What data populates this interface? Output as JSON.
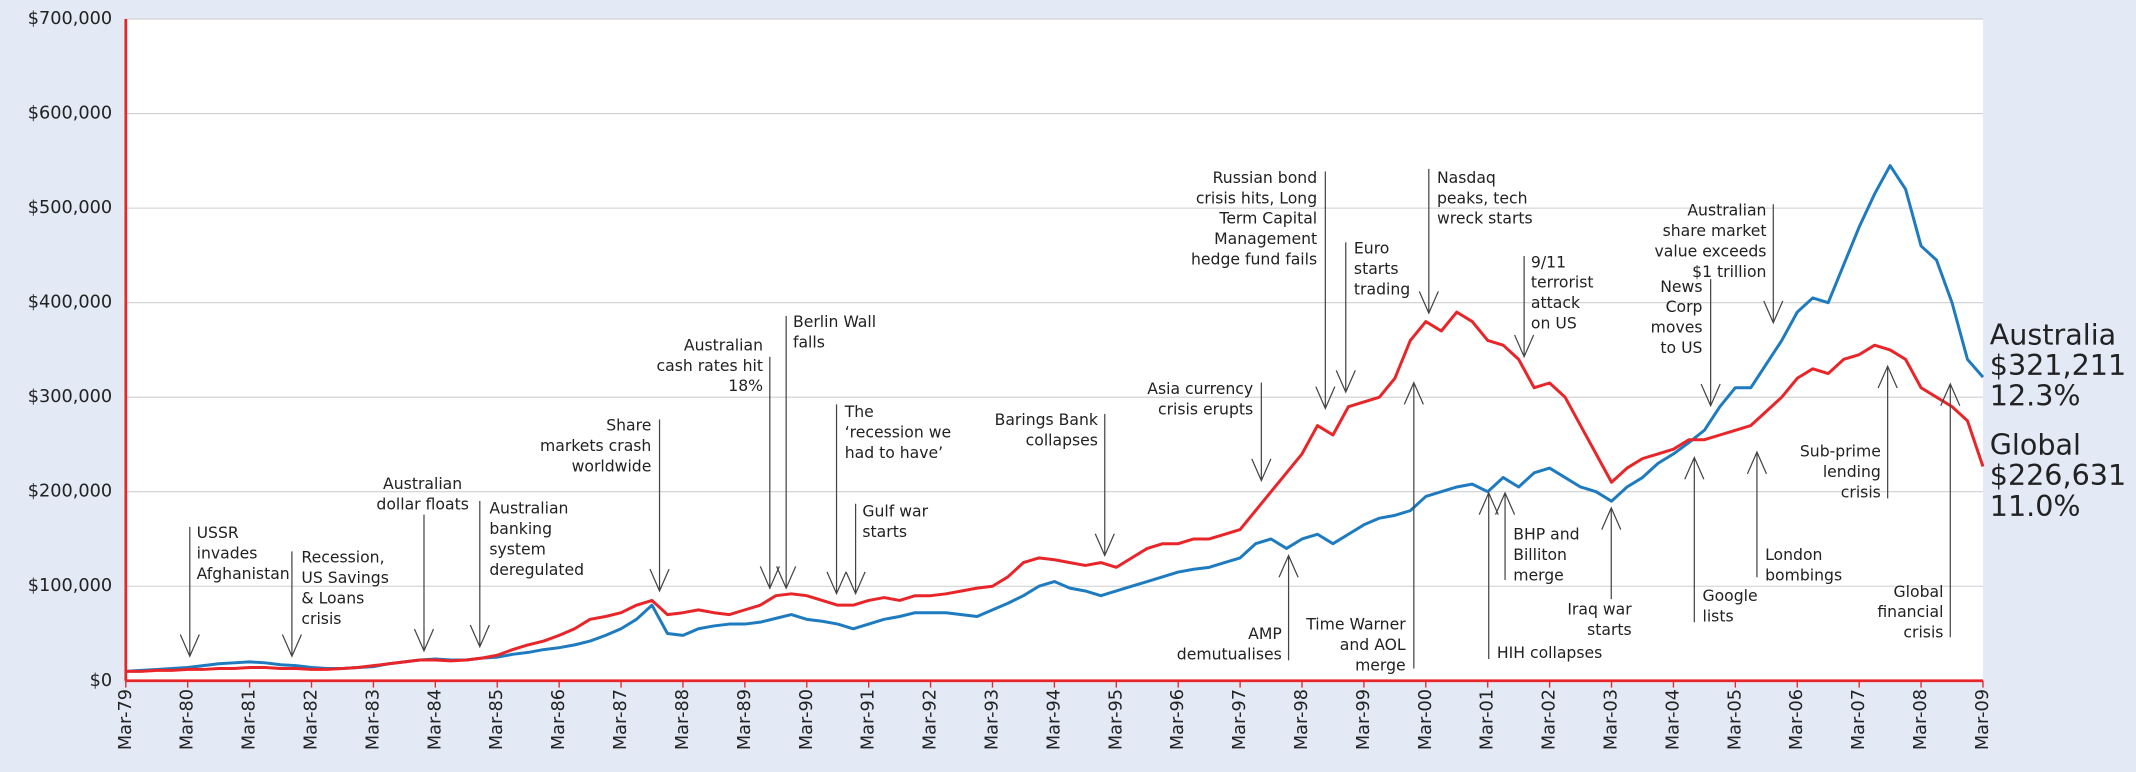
{
  "chart_data": {
    "type": "line",
    "x": [
      "Mar-79",
      "Jun-79",
      "Sep-79",
      "Dec-79",
      "Mar-80",
      "Jun-80",
      "Sep-80",
      "Dec-80",
      "Mar-81",
      "Jun-81",
      "Sep-81",
      "Dec-81",
      "Mar-82",
      "Jun-82",
      "Sep-82",
      "Dec-82",
      "Mar-83",
      "Jun-83",
      "Sep-83",
      "Dec-83",
      "Mar-84",
      "Jun-84",
      "Sep-84",
      "Dec-84",
      "Mar-85",
      "Jun-85",
      "Sep-85",
      "Dec-85",
      "Mar-86",
      "Jun-86",
      "Sep-86",
      "Dec-86",
      "Mar-87",
      "Jun-87",
      "Sep-87",
      "Dec-87",
      "Mar-88",
      "Jun-88",
      "Sep-88",
      "Dec-88",
      "Mar-89",
      "Jun-89",
      "Sep-89",
      "Dec-89",
      "Mar-90",
      "Jun-90",
      "Sep-90",
      "Dec-90",
      "Mar-91",
      "Jun-91",
      "Sep-91",
      "Dec-91",
      "Mar-92",
      "Jun-92",
      "Sep-92",
      "Dec-92",
      "Mar-93",
      "Jun-93",
      "Sep-93",
      "Dec-93",
      "Mar-94",
      "Jun-94",
      "Sep-94",
      "Dec-94",
      "Mar-95",
      "Jun-95",
      "Sep-95",
      "Dec-95",
      "Mar-96",
      "Jun-96",
      "Sep-96",
      "Dec-96",
      "Mar-97",
      "Jun-97",
      "Sep-97",
      "Dec-97",
      "Mar-98",
      "Jun-98",
      "Sep-98",
      "Dec-98",
      "Mar-99",
      "Jun-99",
      "Sep-99",
      "Dec-99",
      "Mar-00",
      "Jun-00",
      "Sep-00",
      "Dec-00",
      "Mar-01",
      "Jun-01",
      "Sep-01",
      "Dec-01",
      "Mar-02",
      "Jun-02",
      "Sep-02",
      "Dec-02",
      "Mar-03",
      "Jun-03",
      "Sep-03",
      "Dec-03",
      "Mar-04",
      "Jun-04",
      "Sep-04",
      "Dec-04",
      "Mar-05",
      "Jun-05",
      "Sep-05",
      "Dec-05",
      "Mar-06",
      "Jun-06",
      "Sep-06",
      "Dec-06",
      "Mar-07",
      "Jun-07",
      "Sep-07",
      "Dec-07",
      "Mar-08",
      "Jun-08",
      "Sep-08",
      "Dec-08",
      "Mar-09"
    ],
    "series": [
      {
        "name": "Australia",
        "color": "#1f7bbf",
        "end_label": "$321,211",
        "return": "12.3%",
        "values": [
          10000,
          11000,
          12000,
          13000,
          14000,
          16000,
          18000,
          19000,
          20000,
          19000,
          17000,
          16000,
          14000,
          13000,
          13000,
          14000,
          15000,
          18000,
          20000,
          22000,
          23000,
          22000,
          22000,
          24000,
          25000,
          28000,
          30000,
          33000,
          35000,
          38000,
          42000,
          48000,
          55000,
          65000,
          80000,
          50000,
          48000,
          55000,
          58000,
          60000,
          60000,
          62000,
          66000,
          70000,
          65000,
          63000,
          60000,
          55000,
          60000,
          65000,
          68000,
          72000,
          72000,
          72000,
          70000,
          68000,
          75000,
          82000,
          90000,
          100000,
          105000,
          98000,
          95000,
          90000,
          95000,
          100000,
          105000,
          110000,
          115000,
          118000,
          120000,
          125000,
          130000,
          145000,
          150000,
          140000,
          150000,
          155000,
          145000,
          155000,
          165000,
          172000,
          175000,
          180000,
          195000,
          200000,
          205000,
          208000,
          200000,
          215000,
          205000,
          220000,
          225000,
          215000,
          205000,
          200000,
          190000,
          205000,
          215000,
          230000,
          240000,
          252000,
          265000,
          290000,
          310000,
          310000,
          335000,
          360000,
          390000,
          405000,
          400000,
          440000,
          480000,
          515000,
          545000,
          520000,
          460000,
          445000,
          400000,
          340000,
          321211
        ]
      },
      {
        "name": "Global",
        "color": "#e8262a",
        "end_label": "$226,631",
        "return": "11.0%",
        "values": [
          10000,
          10000,
          11000,
          11000,
          12000,
          12000,
          13000,
          13000,
          14000,
          14000,
          13000,
          13000,
          12000,
          12000,
          13000,
          14000,
          16000,
          18000,
          20000,
          22000,
          22000,
          21000,
          22000,
          24000,
          27000,
          33000,
          38000,
          42000,
          48000,
          55000,
          65000,
          68000,
          72000,
          80000,
          85000,
          70000,
          72000,
          75000,
          72000,
          70000,
          75000,
          80000,
          90000,
          92000,
          90000,
          85000,
          80000,
          80000,
          85000,
          88000,
          85000,
          90000,
          90000,
          92000,
          95000,
          98000,
          100000,
          110000,
          125000,
          130000,
          128000,
          125000,
          122000,
          125000,
          120000,
          130000,
          140000,
          145000,
          145000,
          150000,
          150000,
          155000,
          160000,
          180000,
          200000,
          220000,
          240000,
          270000,
          260000,
          290000,
          295000,
          300000,
          320000,
          360000,
          380000,
          370000,
          390000,
          380000,
          360000,
          355000,
          340000,
          310000,
          315000,
          300000,
          270000,
          240000,
          210000,
          225000,
          235000,
          240000,
          245000,
          255000,
          255000,
          260000,
          265000,
          270000,
          285000,
          300000,
          320000,
          330000,
          325000,
          340000,
          345000,
          355000,
          350000,
          340000,
          310000,
          300000,
          290000,
          275000,
          226631
        ]
      }
    ],
    "ylim": [
      0,
      700000
    ],
    "yticks": [
      {
        "value": 0,
        "label": "$0"
      },
      {
        "value": 100000,
        "label": "$100,000"
      },
      {
        "value": 200000,
        "label": "$200,000"
      },
      {
        "value": 300000,
        "label": "$300,000"
      },
      {
        "value": 400000,
        "label": "$400,000"
      },
      {
        "value": 500000,
        "label": "$500,000"
      },
      {
        "value": 600000,
        "label": "$600,000"
      },
      {
        "value": 700000,
        "label": "$700,000"
      }
    ],
    "grid": true,
    "annotations": [
      [
        "USSR",
        "invades",
        "Afghanistan"
      ],
      [
        "Recession,",
        "US Savings",
        "& Loans",
        "crisis"
      ],
      [
        "Australian",
        "dollar floats"
      ],
      [
        "Australian",
        "banking",
        "system",
        "deregulated"
      ],
      [
        "Share",
        "markets crash",
        "worldwide"
      ],
      [
        "Australian",
        "cash rates hit",
        "18%"
      ],
      [
        "Berlin Wall",
        "falls"
      ],
      [
        "The",
        "‘recession we",
        "had to have’"
      ],
      [
        "Gulf war",
        "starts"
      ],
      [
        "Barings Bank",
        "collapses"
      ],
      [
        "Asia currency",
        "crisis erupts"
      ],
      [
        "AMP",
        "demutualises"
      ],
      [
        "Russian bond",
        "crisis hits, Long",
        "Term Capital",
        "Management",
        "hedge fund fails"
      ],
      [
        "Euro",
        "starts",
        "trading"
      ],
      [
        "Time Warner",
        "and AOL",
        "merge"
      ],
      [
        "Nasdaq",
        "peaks, tech",
        "wreck starts"
      ],
      [
        "HIH collapses"
      ],
      [
        "BHP and",
        "Billiton",
        "merge"
      ],
      [
        "9/11",
        "terrorist",
        "attack",
        "on US"
      ],
      [
        "Iraq war",
        "starts"
      ],
      [
        "News",
        "Corp",
        "moves",
        "to US"
      ],
      [
        "Australian",
        "share market",
        "value exceeds",
        "$1 trillion"
      ],
      [
        "Google",
        "lists"
      ],
      [
        "London",
        "bombings"
      ],
      [
        "Sub-prime",
        "lending",
        "crisis"
      ],
      [
        "Global",
        "financial",
        "crisis"
      ]
    ]
  }
}
